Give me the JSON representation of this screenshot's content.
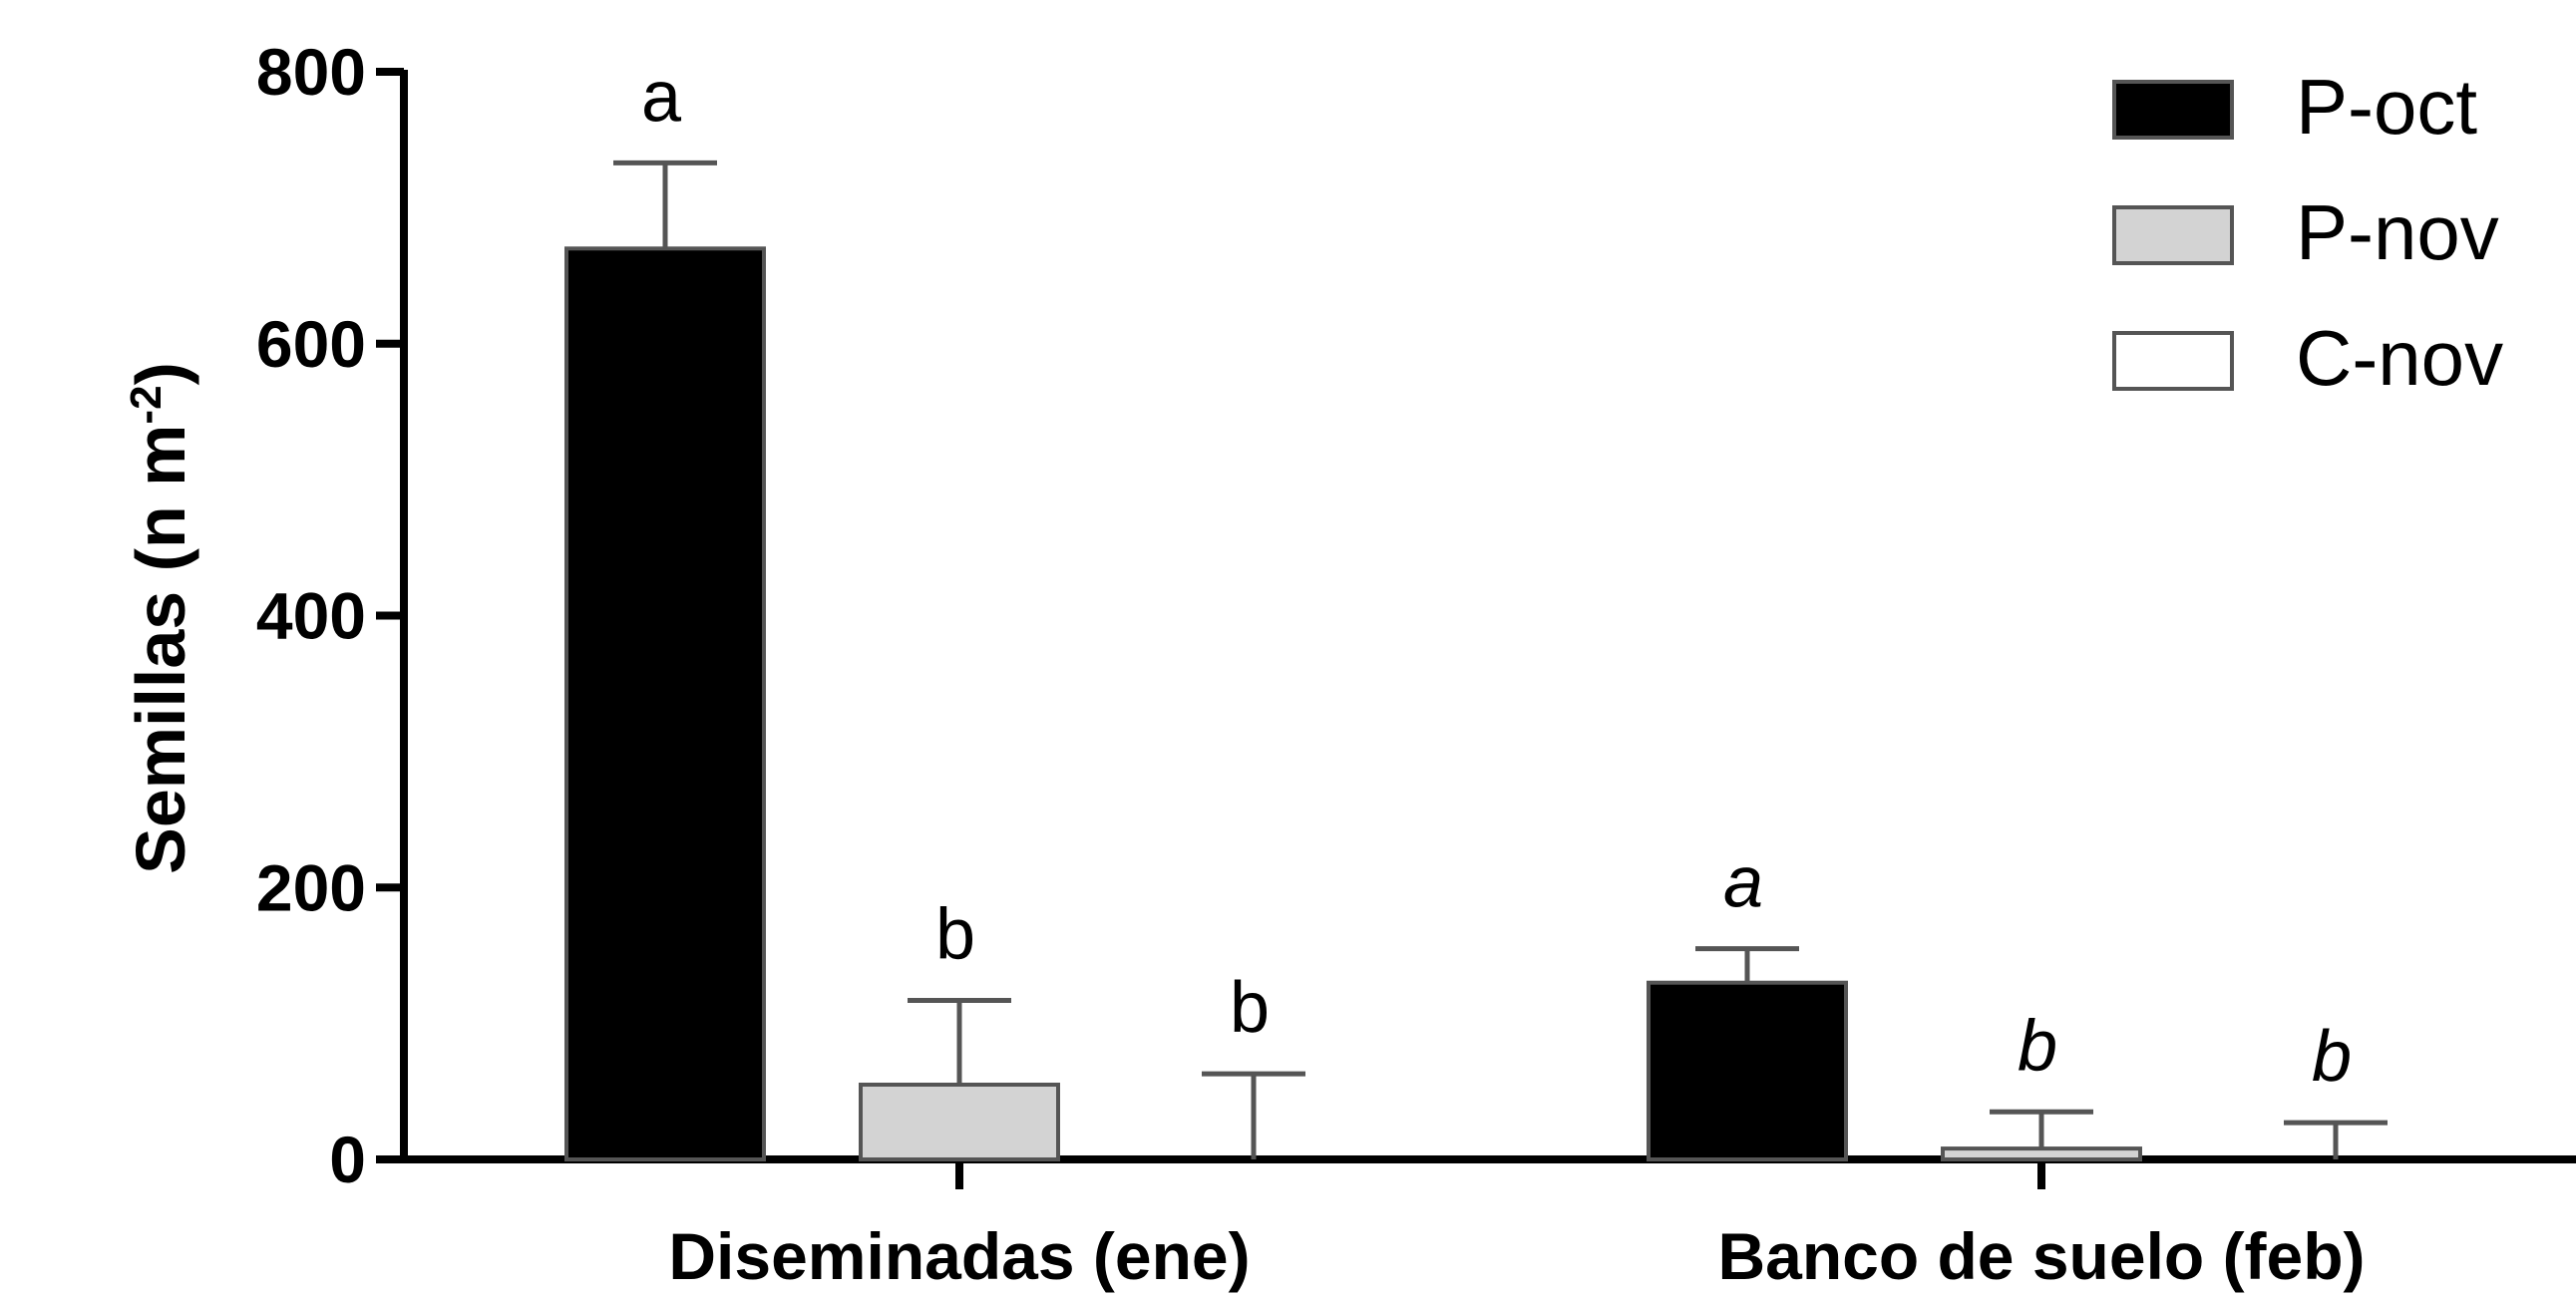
{
  "chart_data": {
    "type": "bar",
    "categories": [
      "Diseminadas (ene)",
      "Banco de suelo (feb)"
    ],
    "series": [
      {
        "name": "P-oct",
        "color": "#000000",
        "values": [
          670,
          130
        ],
        "errors": [
          63,
          25
        ]
      },
      {
        "name": "P-nov",
        "color": "#d3d3d3",
        "values": [
          55,
          8
        ],
        "errors": [
          62,
          27
        ]
      },
      {
        "name": "C-nov",
        "color": "#ffffff",
        "values": [
          0,
          0
        ],
        "errors": [
          63,
          27
        ]
      }
    ],
    "significance": [
      {
        "category": "Diseminadas (ene)",
        "letters": [
          "a",
          "b",
          "b"
        ],
        "italic": false
      },
      {
        "category": "Banco de suelo (feb)",
        "letters": [
          "a",
          "b",
          "b"
        ],
        "italic": true
      }
    ],
    "ylabel": "Semillas (n m",
    "ylabel_superscript": "-2",
    "ylabel_suffix": ")",
    "ylim": [
      0,
      800
    ],
    "yticks": [
      "0",
      "200",
      "400",
      "600",
      "800"
    ],
    "ytick_values": [
      0,
      200,
      400,
      600,
      800
    ],
    "legend_position": "top-right",
    "grid": false
  }
}
